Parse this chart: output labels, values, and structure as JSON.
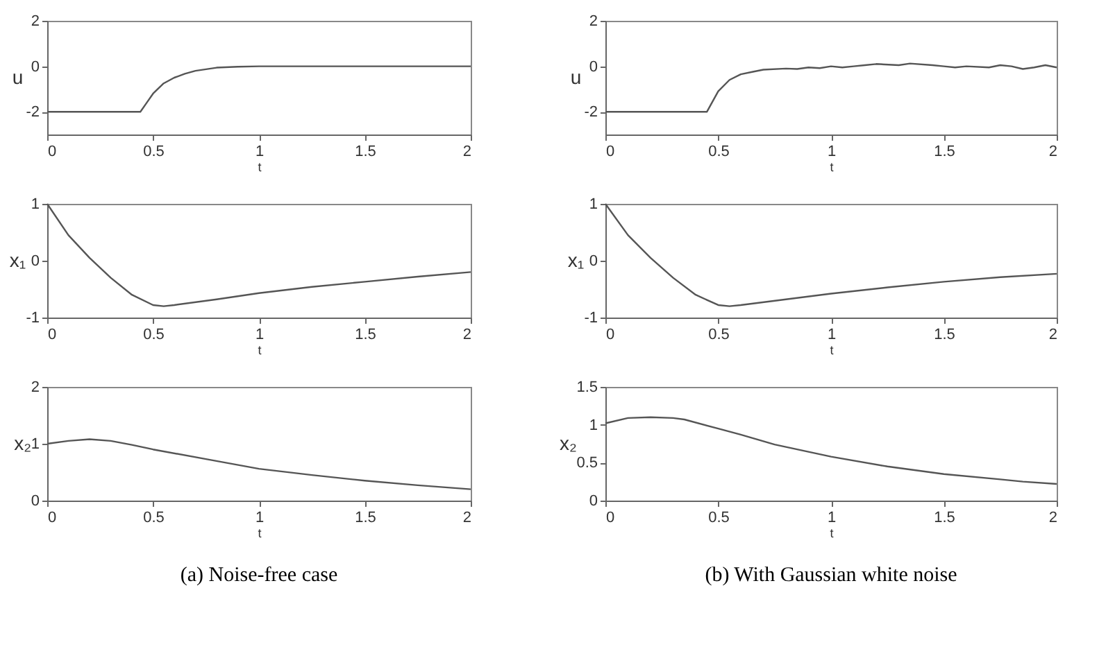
{
  "chart_data": [
    {
      "type": "line",
      "xlabel": "t",
      "ylabel": "u",
      "xlim": [
        0,
        2
      ],
      "xticks": [
        0,
        0.5,
        1,
        1.5,
        2
      ],
      "ylim": [
        -3,
        2
      ],
      "yticks": [
        -2,
        0,
        2
      ],
      "grid": false,
      "series": [
        {
          "color": "#555555",
          "x": [
            0,
            0.44,
            0.47,
            0.5,
            0.55,
            0.6,
            0.65,
            0.7,
            0.8,
            0.9,
            1,
            2
          ],
          "values": [
            -2,
            -2,
            -1.6,
            -1.2,
            -0.75,
            -0.5,
            -0.33,
            -0.2,
            -0.06,
            -0.02,
            0,
            0
          ]
        }
      ]
    },
    {
      "type": "line",
      "xlabel": "t",
      "ylabel": "x₁",
      "xlim": [
        0,
        2
      ],
      "xticks": [
        0,
        0.5,
        1,
        1.5,
        2
      ],
      "ylim": [
        -1,
        1
      ],
      "yticks": [
        -1,
        0,
        1
      ],
      "grid": false,
      "series": [
        {
          "color": "#555555",
          "x": [
            0,
            0.1,
            0.2,
            0.3,
            0.4,
            0.5,
            0.55,
            0.6,
            0.8,
            1,
            1.25,
            1.5,
            1.75,
            2
          ],
          "values": [
            1,
            0.45,
            0.05,
            -0.3,
            -0.6,
            -0.78,
            -0.8,
            -0.78,
            -0.68,
            -0.57,
            -0.46,
            -0.37,
            -0.28,
            -0.2
          ]
        }
      ]
    },
    {
      "type": "line",
      "xlabel": "t",
      "ylabel": "x₂",
      "xlim": [
        0,
        2
      ],
      "xticks": [
        0,
        0.5,
        1,
        1.5,
        2
      ],
      "ylim": [
        0,
        2
      ],
      "yticks": [
        0,
        1,
        2
      ],
      "grid": false,
      "annotations": [
        "(a)  Noise-free case"
      ],
      "series": [
        {
          "color": "#555555",
          "x": [
            0,
            0.1,
            0.2,
            0.3,
            0.4,
            0.5,
            0.75,
            1,
            1.25,
            1.5,
            1.75,
            2
          ],
          "values": [
            1.0,
            1.05,
            1.08,
            1.05,
            0.98,
            0.9,
            0.73,
            0.56,
            0.45,
            0.35,
            0.27,
            0.2
          ]
        }
      ]
    },
    {
      "type": "line",
      "xlabel": "t",
      "ylabel": "u",
      "xlim": [
        0,
        2
      ],
      "xticks": [
        0,
        0.5,
        1,
        1.5,
        2
      ],
      "ylim": [
        -3,
        2
      ],
      "yticks": [
        -2,
        0,
        2
      ],
      "grid": false,
      "series": [
        {
          "color": "#555555",
          "x": [
            0,
            0.45,
            0.5,
            0.55,
            0.6,
            0.65,
            0.7,
            0.8,
            0.85,
            0.9,
            0.95,
            1,
            1.05,
            1.1,
            1.15,
            1.2,
            1.3,
            1.35,
            1.45,
            1.5,
            1.55,
            1.6,
            1.7,
            1.75,
            1.8,
            1.85,
            1.9,
            1.95,
            2
          ],
          "values": [
            -2,
            -2,
            -1.1,
            -0.6,
            -0.35,
            -0.25,
            -0.15,
            -0.1,
            -0.12,
            -0.05,
            -0.08,
            0,
            -0.05,
            0,
            0.05,
            0.1,
            0.05,
            0.12,
            0.05,
            0,
            -0.05,
            0,
            -0.05,
            0.05,
            0,
            -0.12,
            -0.05,
            0.05,
            -0.05
          ]
        }
      ]
    },
    {
      "type": "line",
      "xlabel": "t",
      "ylabel": "x₁",
      "xlim": [
        0,
        2
      ],
      "xticks": [
        0,
        0.5,
        1,
        1.5,
        2
      ],
      "ylim": [
        -1,
        1
      ],
      "yticks": [
        -1,
        0,
        1
      ],
      "grid": false,
      "series": [
        {
          "color": "#555555",
          "x": [
            0,
            0.1,
            0.2,
            0.3,
            0.4,
            0.5,
            0.55,
            0.6,
            0.8,
            1,
            1.25,
            1.5,
            1.75,
            2
          ],
          "values": [
            1,
            0.45,
            0.05,
            -0.3,
            -0.6,
            -0.78,
            -0.8,
            -0.78,
            -0.68,
            -0.58,
            -0.47,
            -0.37,
            -0.29,
            -0.23
          ]
        }
      ]
    },
    {
      "type": "line",
      "xlabel": "t",
      "ylabel": "x₂",
      "xlim": [
        0,
        2
      ],
      "xticks": [
        0,
        0.5,
        1,
        1.5,
        2
      ],
      "ylim": [
        0,
        1.5
      ],
      "yticks": [
        0,
        0.5,
        1,
        1.5
      ],
      "grid": false,
      "annotations": [
        "(b)  With Gaussian white noise"
      ],
      "series": [
        {
          "color": "#555555",
          "x": [
            0,
            0.1,
            0.2,
            0.3,
            0.35,
            0.5,
            0.6,
            0.75,
            1,
            1.25,
            1.5,
            1.75,
            1.85,
            2
          ],
          "values": [
            1.02,
            1.09,
            1.1,
            1.09,
            1.07,
            0.95,
            0.87,
            0.74,
            0.58,
            0.45,
            0.35,
            0.28,
            0.25,
            0.22
          ]
        }
      ]
    }
  ]
}
